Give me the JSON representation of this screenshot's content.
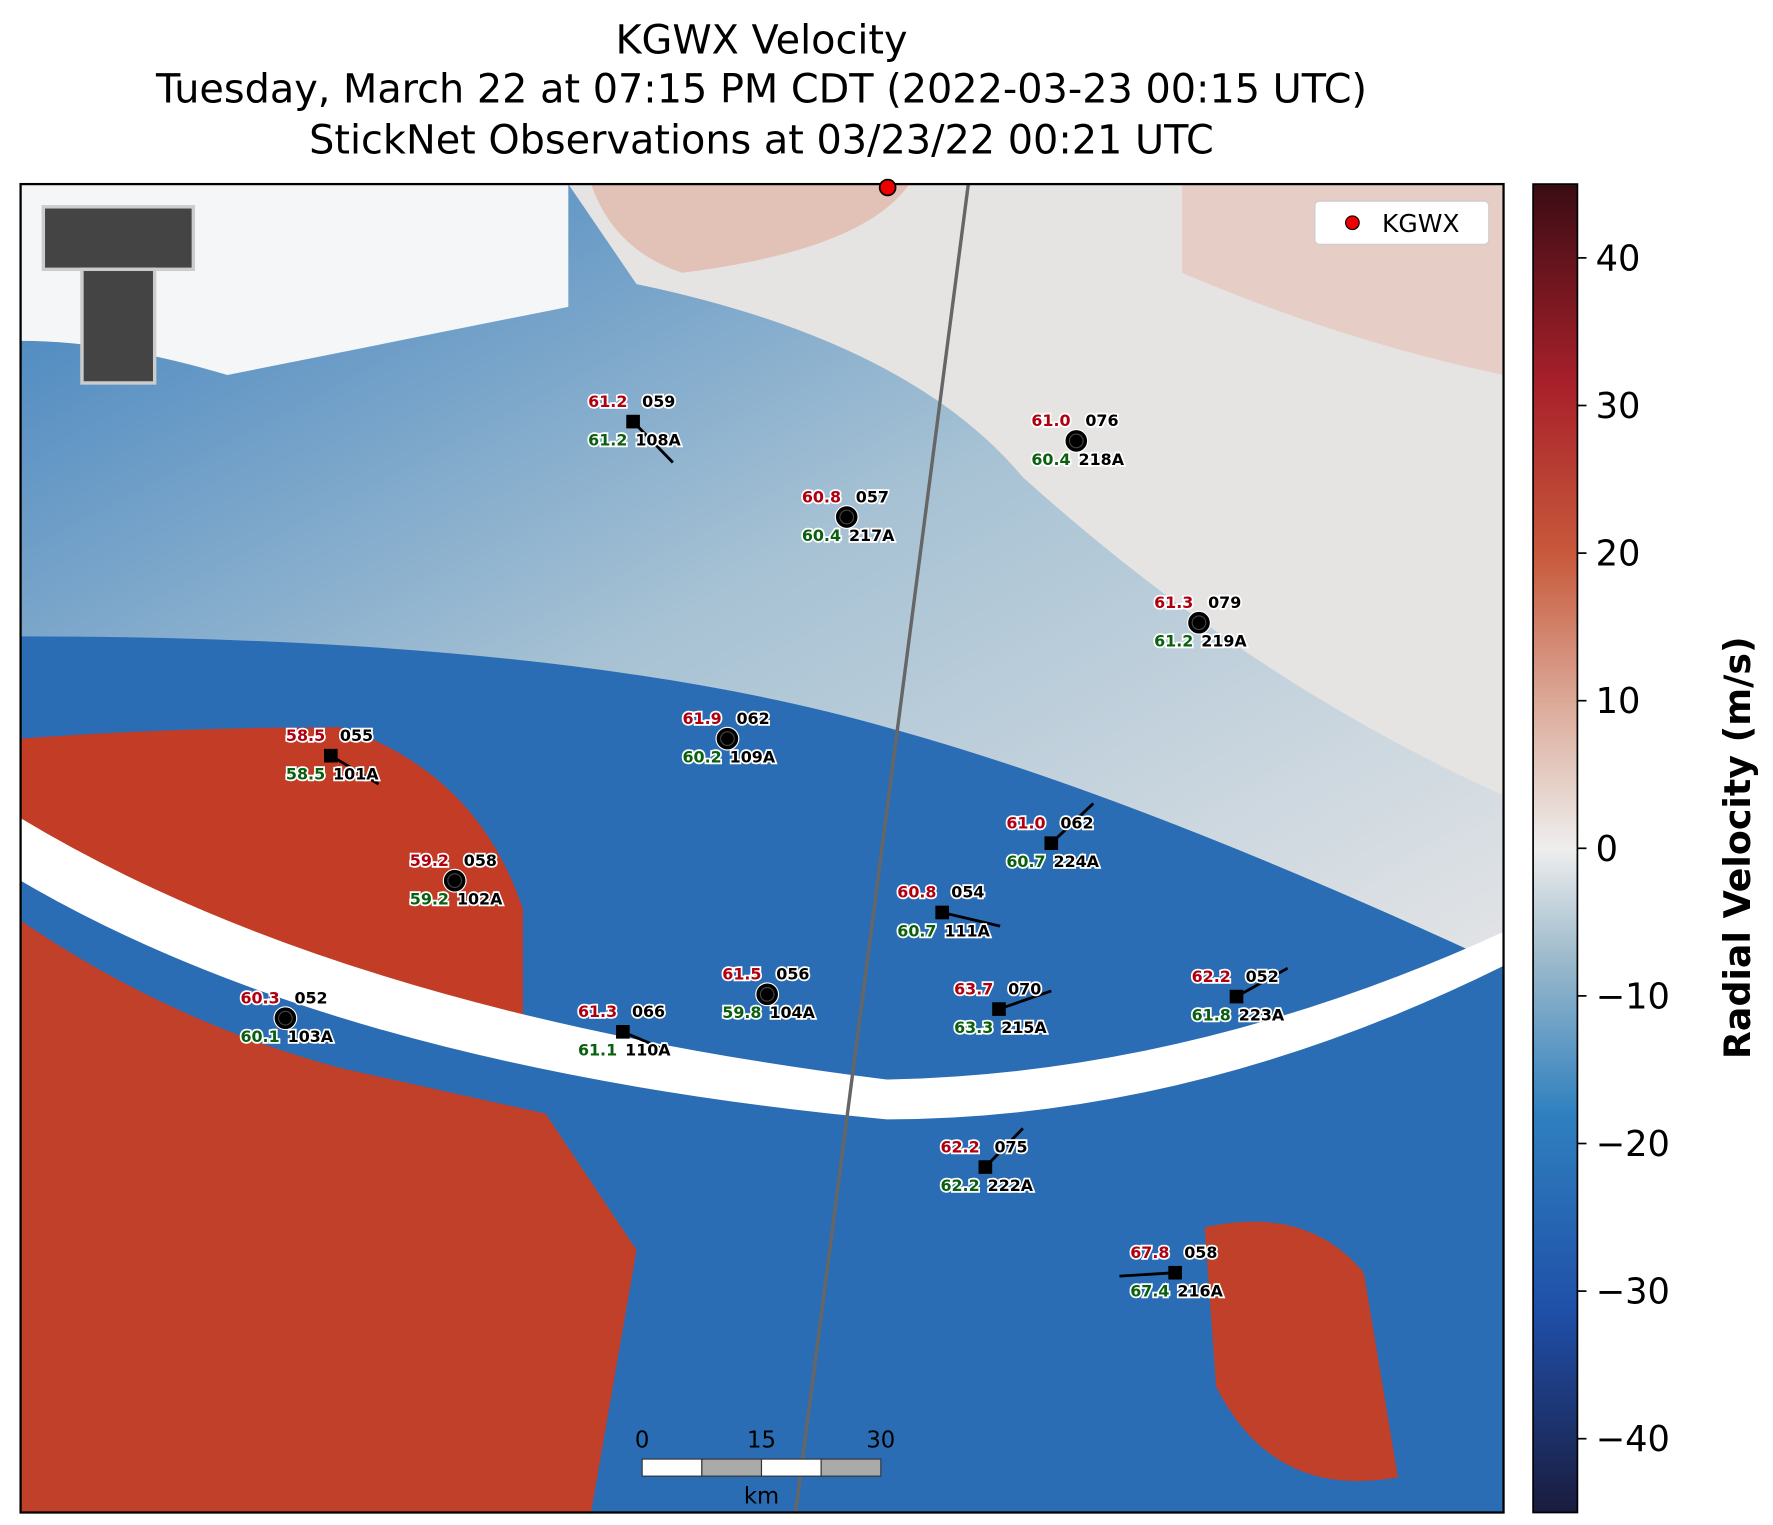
{
  "title_lines": [
    "KGWX Velocity",
    "Tuesday, March 22 at 07:15 PM CDT (2022-03-23 00:15 UTC)",
    "StickNet Observations at 03/23/22 00:21 UTC"
  ],
  "legend": {
    "label": "KGWX"
  },
  "colorbar": {
    "label": "Radial Velocity (m/s)",
    "lim": [
      -45,
      45
    ],
    "ticks": [
      40,
      30,
      20,
      10,
      0,
      {
        "value": -10,
        "label": "−10"
      },
      {
        "value": -20,
        "label": "−20"
      },
      {
        "value": -30,
        "label": "−30"
      },
      {
        "value": -40,
        "label": "−40"
      }
    ]
  },
  "scale_bar": {
    "ticks": [
      0,
      15,
      30
    ],
    "unit": "km"
  },
  "stations": [
    {
      "temperature": "61.2",
      "wind_direction": "059",
      "dewpoint": "61.2",
      "id": "108A"
    },
    {
      "temperature": "61.0",
      "wind_direction": "076",
      "dewpoint": "60.4",
      "id": "218A"
    },
    {
      "temperature": "60.8",
      "wind_direction": "057",
      "dewpoint": "60.4",
      "id": "217A"
    },
    {
      "temperature": "61.3",
      "wind_direction": "079",
      "dewpoint": "61.2",
      "id": "219A"
    },
    {
      "temperature": "61.9",
      "wind_direction": "062",
      "dewpoint": "60.2",
      "id": "109A"
    },
    {
      "temperature": "58.5",
      "wind_direction": "055",
      "dewpoint": "58.5",
      "id": "101A"
    },
    {
      "temperature": "61.0",
      "wind_direction": "062",
      "dewpoint": "60.7",
      "id": "224A"
    },
    {
      "temperature": "59.2",
      "wind_direction": "058",
      "dewpoint": "59.2",
      "id": "102A"
    },
    {
      "temperature": "60.8",
      "wind_direction": "054",
      "dewpoint": "60.7",
      "id": "111A"
    },
    {
      "temperature": "61.5",
      "wind_direction": "056",
      "dewpoint": "59.8",
      "id": "104A"
    },
    {
      "temperature": "63.7",
      "wind_direction": "070",
      "dewpoint": "63.3",
      "id": "215A"
    },
    {
      "temperature": "62.2",
      "wind_direction": "052",
      "dewpoint": "61.8",
      "id": "223A"
    },
    {
      "temperature": "60.3",
      "wind_direction": "052",
      "dewpoint": "60.1",
      "id": "103A"
    },
    {
      "temperature": "61.3",
      "wind_direction": "066",
      "dewpoint": "61.1",
      "id": "110A"
    },
    {
      "temperature": "62.2",
      "wind_direction": "075",
      "dewpoint": "62.2",
      "id": "222A"
    },
    {
      "temperature": "67.8",
      "wind_direction": "058",
      "dewpoint": "67.4",
      "id": "216A"
    }
  ]
}
